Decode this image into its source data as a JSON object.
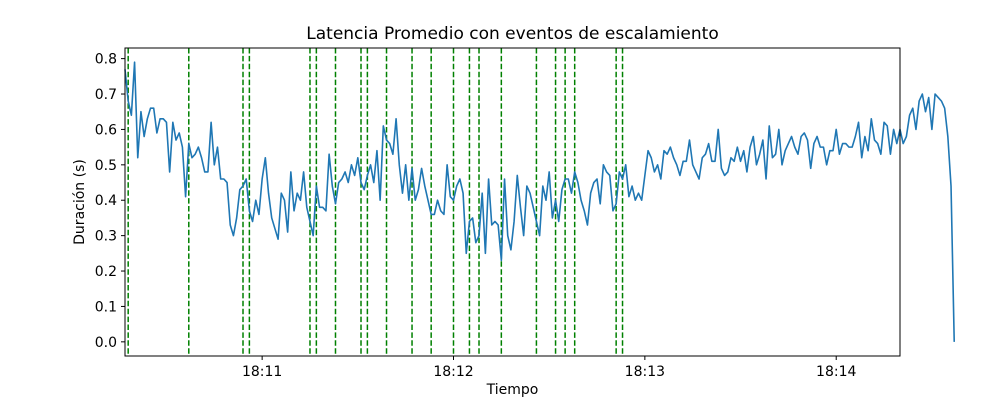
{
  "chart_data": {
    "type": "line",
    "title": "Latencia Promedio con eventos de escalamiento",
    "xlabel": "Tiempo",
    "ylabel": "Duración (s)",
    "xlim": [
      "18:10:17",
      "18:14:20"
    ],
    "ylim": [
      -0.04,
      0.83
    ],
    "grid": false,
    "yticks": [
      0.0,
      0.1,
      0.2,
      0.3,
      0.4,
      0.5,
      0.6,
      0.7,
      0.8
    ],
    "ytick_labels": [
      "0.0",
      "0.1",
      "0.2",
      "0.3",
      "0.4",
      "0.5",
      "0.6",
      "0.7",
      "0.8"
    ],
    "xticks": [
      "18:11:00",
      "18:12:00",
      "18:13:00",
      "18:14:00"
    ],
    "xtick_labels": [
      "18:11",
      "18:12",
      "18:13",
      "18:14"
    ],
    "series": [
      {
        "color": "#1f77b4",
        "start_time": "18:10:17",
        "interval_seconds": 1,
        "values": [
          0.77,
          0.68,
          0.64,
          0.79,
          0.52,
          0.65,
          0.58,
          0.63,
          0.66,
          0.66,
          0.59,
          0.63,
          0.63,
          0.62,
          0.48,
          0.62,
          0.57,
          0.59,
          0.55,
          0.41,
          0.56,
          0.52,
          0.53,
          0.55,
          0.52,
          0.48,
          0.48,
          0.62,
          0.5,
          0.55,
          0.46,
          0.46,
          0.45,
          0.33,
          0.3,
          0.35,
          0.43,
          0.44,
          0.46,
          0.37,
          0.34,
          0.4,
          0.36,
          0.46,
          0.52,
          0.42,
          0.35,
          0.32,
          0.29,
          0.42,
          0.4,
          0.31,
          0.48,
          0.37,
          0.42,
          0.4,
          0.48,
          0.38,
          0.34,
          0.3,
          0.44,
          0.38,
          0.38,
          0.37,
          0.53,
          0.44,
          0.39,
          0.45,
          0.46,
          0.48,
          0.45,
          0.5,
          0.47,
          0.52,
          0.45,
          0.43,
          0.47,
          0.5,
          0.45,
          0.54,
          0.4,
          0.61,
          0.57,
          0.56,
          0.53,
          0.63,
          0.5,
          0.42,
          0.5,
          0.4,
          0.49,
          0.4,
          0.43,
          0.49,
          0.44,
          0.4,
          0.36,
          0.36,
          0.4,
          0.37,
          0.36,
          0.5,
          0.41,
          0.4,
          0.44,
          0.46,
          0.42,
          0.25,
          0.34,
          0.35,
          0.28,
          0.3,
          0.42,
          0.25,
          0.46,
          0.33,
          0.34,
          0.33,
          0.23,
          0.46,
          0.3,
          0.26,
          0.34,
          0.47,
          0.38,
          0.3,
          0.44,
          0.42,
          0.38,
          0.34,
          0.3,
          0.44,
          0.4,
          0.48,
          0.35,
          0.4,
          0.34,
          0.43,
          0.46,
          0.46,
          0.42,
          0.48,
          0.45,
          0.4,
          0.37,
          0.33,
          0.42,
          0.45,
          0.46,
          0.39,
          0.5,
          0.48,
          0.47,
          0.37,
          0.39,
          0.48,
          0.46,
          0.5,
          0.41,
          0.44,
          0.4,
          0.42,
          0.4,
          0.47,
          0.54,
          0.52,
          0.48,
          0.5,
          0.46,
          0.54,
          0.53,
          0.55,
          0.52,
          0.5,
          0.47,
          0.51,
          0.51,
          0.57,
          0.5,
          0.48,
          0.46,
          0.52,
          0.53,
          0.56,
          0.51,
          0.51,
          0.6,
          0.49,
          0.47,
          0.48,
          0.52,
          0.51,
          0.55,
          0.51,
          0.54,
          0.48,
          0.55,
          0.58,
          0.5,
          0.53,
          0.57,
          0.46,
          0.61,
          0.52,
          0.53,
          0.6,
          0.5,
          0.54,
          0.56,
          0.58,
          0.55,
          0.53,
          0.58,
          0.59,
          0.57,
          0.49,
          0.56,
          0.58,
          0.55,
          0.55,
          0.5,
          0.54,
          0.54,
          0.6,
          0.53,
          0.56,
          0.56,
          0.55,
          0.55,
          0.58,
          0.62,
          0.52,
          0.58,
          0.54,
          0.63,
          0.57,
          0.56,
          0.53,
          0.62,
          0.61,
          0.53,
          0.6,
          0.56,
          0.6,
          0.56,
          0.58,
          0.64,
          0.66,
          0.6,
          0.68,
          0.7,
          0.65,
          0.69,
          0.6,
          0.7,
          0.69,
          0.68,
          0.66,
          0.58,
          0.44,
          0.0
        ]
      }
    ],
    "vlines": {
      "color": "#008000",
      "style": "dashed",
      "times": [
        "18:10:18",
        "18:10:37",
        "18:10:54",
        "18:10:56",
        "18:11:15",
        "18:11:17",
        "18:11:23",
        "18:11:31",
        "18:11:33",
        "18:11:39",
        "18:11:47",
        "18:11:53",
        "18:12:00",
        "18:12:05",
        "18:12:08",
        "18:12:15",
        "18:12:26",
        "18:12:32",
        "18:12:35",
        "18:12:38",
        "18:12:51",
        "18:12:53"
      ]
    }
  }
}
